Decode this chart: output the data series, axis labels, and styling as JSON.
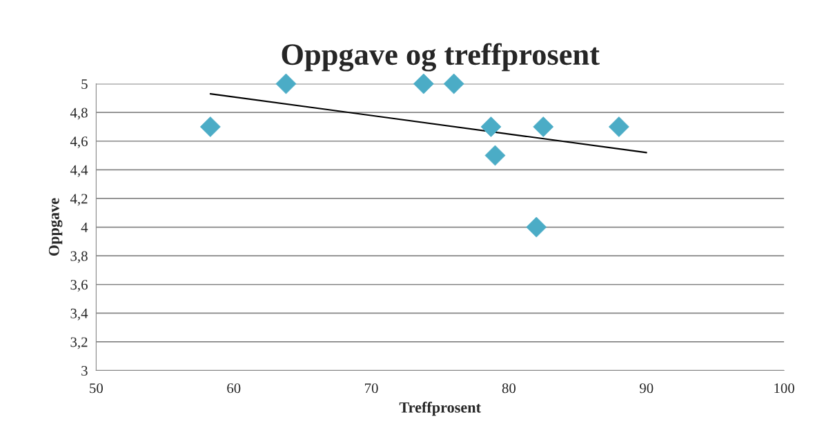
{
  "chart_data": {
    "type": "scatter",
    "title": "Oppgave og treffprosent",
    "xlabel": "Treffprosent",
    "ylabel": "Oppgave",
    "xlim": [
      50,
      100
    ],
    "xticks": [
      50,
      60,
      70,
      80,
      90,
      100
    ],
    "ylim": [
      3,
      5
    ],
    "yticks": [
      {
        "value": 3,
        "label": "3"
      },
      {
        "value": 3.2,
        "label": "3,2"
      },
      {
        "value": 3.4,
        "label": "3,4"
      },
      {
        "value": 3.6,
        "label": "3,6"
      },
      {
        "value": 3.8,
        "label": "3,8"
      },
      {
        "value": 4,
        "label": "4"
      },
      {
        "value": 4.2,
        "label": "4,2"
      },
      {
        "value": 4.4,
        "label": "4,4"
      },
      {
        "value": 4.6,
        "label": "4,6"
      },
      {
        "value": 4.8,
        "label": "4,8"
      },
      {
        "value": 5,
        "label": "5"
      }
    ],
    "grid": "y",
    "series": [
      {
        "marker": "diamond",
        "color": "#4bacc6",
        "x": [
          58.3,
          63.8,
          73.8,
          76.0,
          78.7,
          79.0,
          82.5,
          82.0,
          88.0
        ],
        "values": [
          4.7,
          5,
          5,
          5,
          4.7,
          4.5,
          4.7,
          4.0,
          4.7
        ]
      },
      {
        "type": "line",
        "color": "#000000",
        "x": [
          58.3,
          90.0
        ],
        "values": [
          4.93,
          4.52
        ],
        "line_style": "solid"
      }
    ]
  }
}
